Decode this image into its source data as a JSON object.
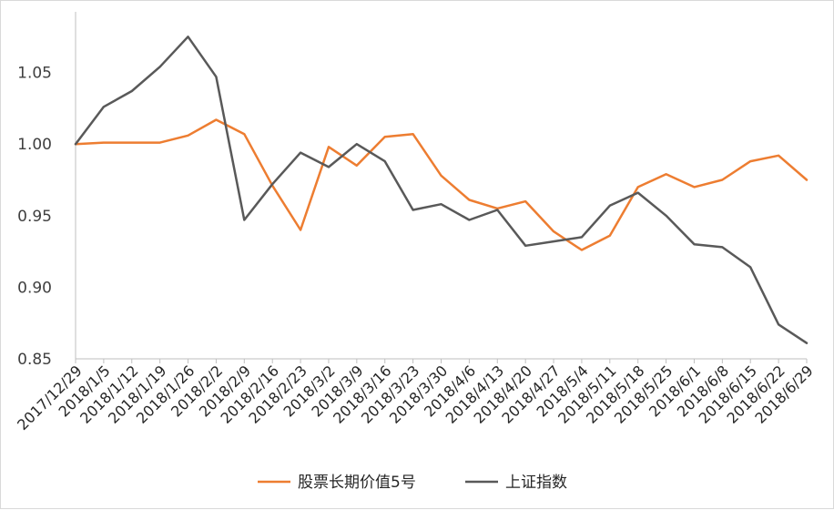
{
  "chart_data": {
    "type": "line",
    "title": "",
    "xlabel": "",
    "ylabel": "",
    "ylim": [
      0.85,
      1.1
    ],
    "yticks": [
      "0.85",
      "0.90",
      "0.95",
      "1.00",
      "1.05"
    ],
    "grid": false,
    "legend_position": "bottom",
    "categories": [
      "2017/12/29",
      "2018/1/5",
      "2018/1/12",
      "2018/1/19",
      "2018/1/26",
      "2018/2/2",
      "2018/2/9",
      "2018/2/16",
      "2018/2/23",
      "2018/3/2",
      "2018/3/9",
      "2018/3/16",
      "2018/3/23",
      "2018/3/30",
      "2018/4/6",
      "2018/4/13",
      "2018/4/20",
      "2018/4/27",
      "2018/5/4",
      "2018/5/11",
      "2018/5/18",
      "2018/5/25",
      "2018/6/1",
      "2018/6/8",
      "2018/6/15",
      "2018/6/22",
      "2018/6/29"
    ],
    "series": [
      {
        "name": "股票长期价值5号",
        "color": "#ed7d31",
        "values": [
          1.0,
          1.001,
          1.001,
          1.001,
          1.006,
          1.017,
          1.007,
          0.971,
          0.94,
          0.998,
          0.985,
          1.005,
          1.007,
          0.978,
          0.961,
          0.955,
          0.96,
          0.939,
          0.926,
          0.936,
          0.97,
          0.979,
          0.97,
          0.975,
          0.988,
          0.992,
          0.975
        ]
      },
      {
        "name": "上证指数",
        "color": "#595959",
        "values": [
          1.0,
          1.026,
          1.037,
          1.054,
          1.075,
          1.047,
          0.947,
          0.972,
          0.994,
          0.984,
          1.0,
          0.988,
          0.954,
          0.958,
          0.947,
          0.954,
          0.929,
          0.932,
          0.935,
          0.957,
          0.966,
          0.95,
          0.93,
          0.928,
          0.914,
          0.874,
          0.861
        ]
      }
    ]
  }
}
